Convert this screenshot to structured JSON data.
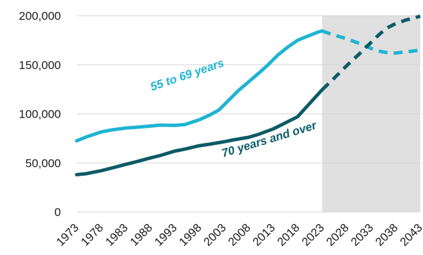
{
  "chart_data": {
    "type": "line",
    "title": "",
    "xlabel": "",
    "ylabel": "",
    "xlim": [
      1973,
      2043
    ],
    "ylim": [
      0,
      200000
    ],
    "y_ticks": [
      {
        "value": 0,
        "label": "0"
      },
      {
        "value": 50000,
        "label": "50,000"
      },
      {
        "value": 100000,
        "label": "100,000"
      },
      {
        "value": 150000,
        "label": "150,000"
      },
      {
        "value": 200000,
        "label": "200,000"
      }
    ],
    "x_ticks": [
      "1973",
      "1978",
      "1983",
      "1988",
      "1993",
      "1998",
      "2003",
      "2008",
      "2013",
      "2018",
      "2023",
      "2028",
      "2033",
      "2038",
      "2043"
    ],
    "projection_start": 2023,
    "projection_shading_color": "#e0e0e0",
    "grid": "horizontal",
    "series": [
      {
        "name": "55 to 69 years",
        "color": "#1fb4d2",
        "historical": [
          [
            1973,
            72500
          ],
          [
            1975,
            76500
          ],
          [
            1978,
            81500
          ],
          [
            1980,
            83500
          ],
          [
            1983,
            85500
          ],
          [
            1985,
            86300
          ],
          [
            1988,
            87500
          ],
          [
            1990,
            88500
          ],
          [
            1993,
            88200
          ],
          [
            1995,
            89000
          ],
          [
            1998,
            94000
          ],
          [
            2000,
            98500
          ],
          [
            2002,
            104000
          ],
          [
            2004,
            114000
          ],
          [
            2006,
            124000
          ],
          [
            2008,
            132500
          ],
          [
            2010,
            141000
          ],
          [
            2012,
            150000
          ],
          [
            2014,
            160000
          ],
          [
            2016,
            168000
          ],
          [
            2018,
            175000
          ],
          [
            2020,
            179000
          ],
          [
            2022,
            183000
          ],
          [
            2023,
            184500
          ]
        ],
        "projection": [
          [
            2023,
            184500
          ],
          [
            2025,
            181000
          ],
          [
            2028,
            176500
          ],
          [
            2031,
            171000
          ],
          [
            2034,
            164500
          ],
          [
            2037,
            161500
          ],
          [
            2040,
            163000
          ],
          [
            2043,
            165000
          ]
        ]
      },
      {
        "name": "70 years and over",
        "color": "#0c5b66",
        "historical": [
          [
            1973,
            38000
          ],
          [
            1975,
            39000
          ],
          [
            1978,
            42000
          ],
          [
            1980,
            44500
          ],
          [
            1983,
            48500
          ],
          [
            1985,
            51000
          ],
          [
            1988,
            55000
          ],
          [
            1990,
            57500
          ],
          [
            1993,
            62000
          ],
          [
            1995,
            64000
          ],
          [
            1998,
            67500
          ],
          [
            2000,
            69000
          ],
          [
            2003,
            71500
          ],
          [
            2005,
            73500
          ],
          [
            2008,
            76000
          ],
          [
            2010,
            79000
          ],
          [
            2013,
            84500
          ],
          [
            2015,
            89500
          ],
          [
            2018,
            97000
          ],
          [
            2020,
            108000
          ],
          [
            2023,
            124500
          ]
        ],
        "projection": [
          [
            2023,
            124500
          ],
          [
            2025,
            134000
          ],
          [
            2028,
            149000
          ],
          [
            2031,
            163000
          ],
          [
            2034,
            178000
          ],
          [
            2036,
            187000
          ],
          [
            2038,
            192000
          ],
          [
            2040,
            195500
          ],
          [
            2043,
            199500
          ]
        ]
      }
    ]
  }
}
